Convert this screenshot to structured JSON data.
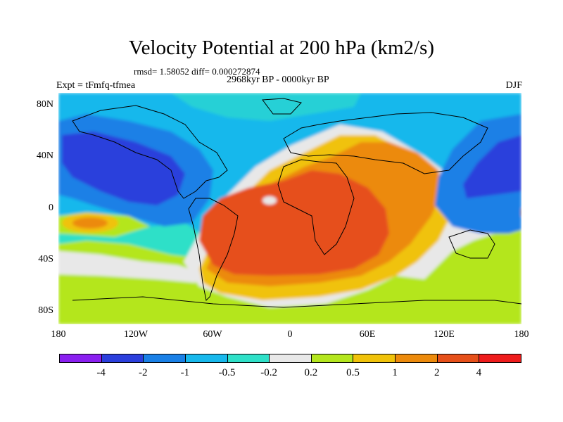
{
  "title": "Velocity Potential at 200 hPa (km2/s)",
  "stats": "rmsd= 1.58052 diff= 0.000272874",
  "period": "2968kyr BP - 0000kyr BP",
  "experiment": "Expt = tFmfq-tfmea",
  "season": "DJF",
  "map": {
    "lat_ticks": [
      "80N",
      "40N",
      "0",
      "40S",
      "80S"
    ],
    "lon_ticks": [
      "180",
      "120W",
      "60W",
      "0",
      "60E",
      "120E",
      "180"
    ]
  },
  "colorbar": {
    "labels": [
      "-4",
      "-2",
      "-1",
      "-0.5",
      "-0.2",
      "0.2",
      "0.5",
      "1",
      "2",
      "4"
    ],
    "colors": [
      "#8a1ff0",
      "#2b3fdc",
      "#1a80e6",
      "#18b8ec",
      "#2fe0c8",
      "#e8e8e8",
      "#b4e61e",
      "#f0c20a",
      "#ec8a0c",
      "#e6501a",
      "#ee1c1c"
    ]
  }
}
